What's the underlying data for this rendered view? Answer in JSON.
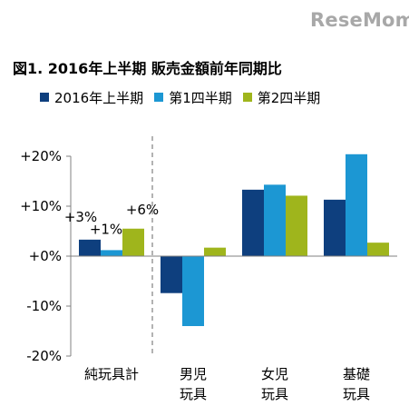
{
  "logo": "ReseMom",
  "title": "図1. 2016年上半期 販売金額前年同期比",
  "colors": {
    "series": [
      "#0e3f7e",
      "#1c97d3",
      "#9fb51c"
    ],
    "axis": "#808080",
    "divider": "#808080"
  },
  "chart_data": {
    "type": "bar",
    "title": "図1. 2016年上半期 販売金額前年同期比",
    "categories": [
      "純玩具計",
      "男児玩具",
      "女児玩具",
      "基礎玩具"
    ],
    "category_lines": [
      [
        "純玩具計"
      ],
      [
        "男児",
        "玩具"
      ],
      [
        "女児",
        "玩具"
      ],
      [
        "基礎",
        "玩具"
      ]
    ],
    "series": [
      {
        "name": "2016年上半期",
        "values": [
          3.3,
          -7.4,
          13.3,
          11.3
        ]
      },
      {
        "name": "第1四半期",
        "values": [
          1.2,
          -14.0,
          14.3,
          20.4
        ]
      },
      {
        "name": "第2四半期",
        "values": [
          5.5,
          1.7,
          12.1,
          2.7
        ]
      }
    ],
    "data_labels": [
      {
        "category": 0,
        "series": 0,
        "text": "+3%"
      },
      {
        "category": 0,
        "series": 1,
        "text": "+1%"
      },
      {
        "category": 0,
        "series": 2,
        "text": "+6%"
      }
    ],
    "ylim": [
      -20,
      20
    ],
    "yticks": [
      20,
      10,
      0,
      -10,
      -20
    ],
    "ytick_labels": [
      "+20%",
      "+10%",
      "+0%",
      "-10%",
      "-20%"
    ],
    "legend_position": "top",
    "grid": false,
    "divider_after_category": 0,
    "xlabel": "",
    "ylabel": ""
  }
}
